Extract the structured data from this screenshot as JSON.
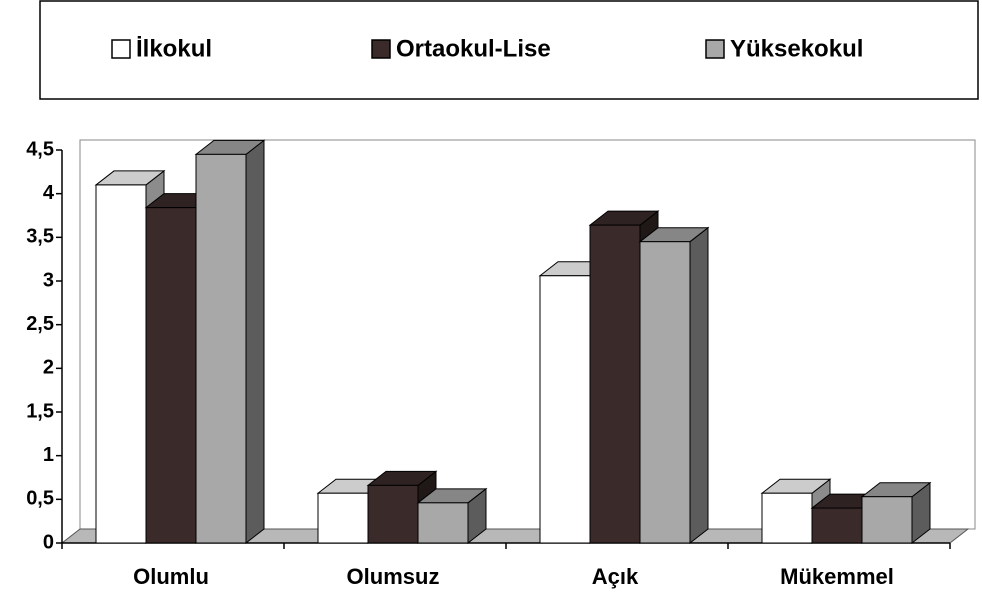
{
  "chart_data": {
    "type": "bar3d",
    "categories": [
      "Olumlu",
      "Olumsuz",
      "Açık",
      "Mükemmel"
    ],
    "series": [
      {
        "name": "İlkokul",
        "color": "#ffffff",
        "values": [
          4.1,
          0.57,
          3.06,
          0.57
        ]
      },
      {
        "name": "Ortaokul-Lise",
        "color": "#3a2a2a",
        "values": [
          3.84,
          0.66,
          3.64,
          0.4
        ]
      },
      {
        "name": "Yüksekokul",
        "color": "#a8a8a8",
        "values": [
          4.45,
          0.46,
          3.45,
          0.53
        ]
      }
    ],
    "ylim": [
      0,
      4.5
    ],
    "yticks": [
      0,
      {
        "value": 0.5,
        "label": "0,5"
      },
      1,
      {
        "value": 1.5,
        "label": "1,5"
      },
      2,
      {
        "value": 2.5,
        "label": "2,5"
      },
      3,
      {
        "value": 3.5,
        "label": "3,5"
      },
      4,
      {
        "value": 4.5,
        "label": "4,5"
      }
    ],
    "legend": "top"
  }
}
